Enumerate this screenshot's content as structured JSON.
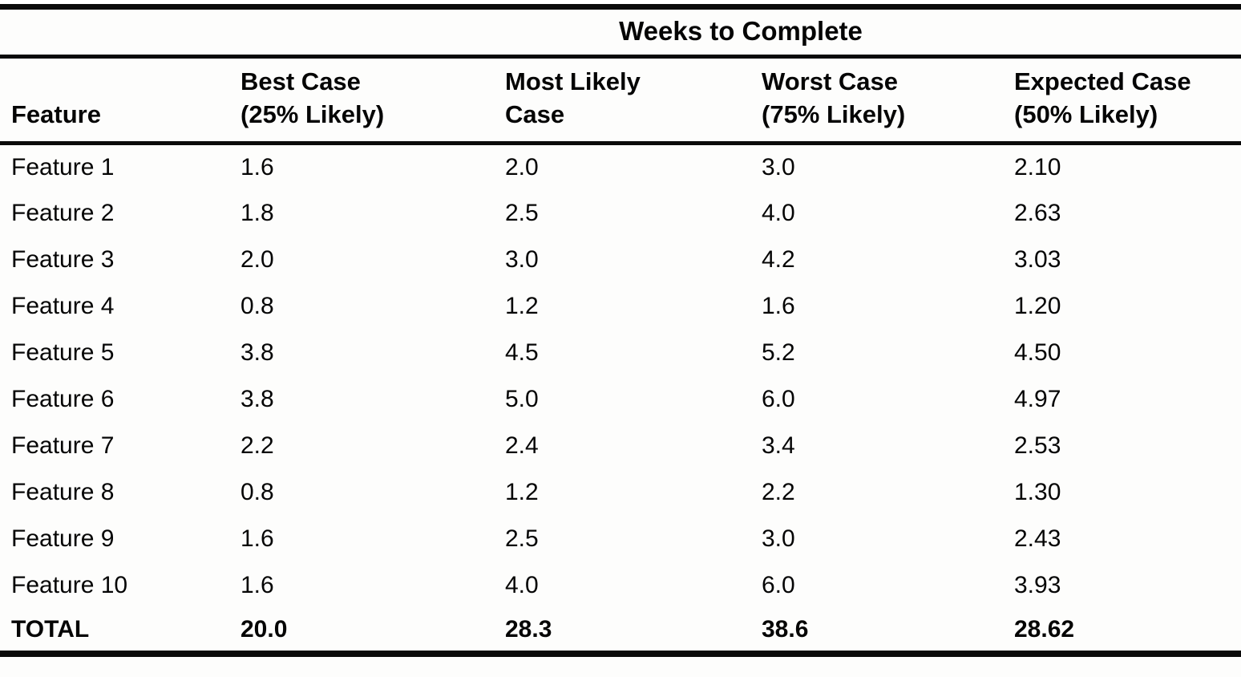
{
  "table": {
    "span_header": "Weeks to Complete",
    "columns": [
      "Feature",
      "Best Case\n(25% Likely)",
      "Most Likely\nCase",
      "Worst Case\n(75% Likely)",
      "Expected Case\n(50% Likely)"
    ],
    "rows": [
      [
        "Feature 1",
        "1.6",
        "2.0",
        "3.0",
        "2.10"
      ],
      [
        "Feature 2",
        "1.8",
        "2.5",
        "4.0",
        "2.63"
      ],
      [
        "Feature 3",
        "2.0",
        "3.0",
        "4.2",
        "3.03"
      ],
      [
        "Feature 4",
        "0.8",
        "1.2",
        "1.6",
        "1.20"
      ],
      [
        "Feature 5",
        "3.8",
        "4.5",
        "5.2",
        "4.50"
      ],
      [
        "Feature 6",
        "3.8",
        "5.0",
        "6.0",
        "4.97"
      ],
      [
        "Feature 7",
        "2.2",
        "2.4",
        "3.4",
        "2.53"
      ],
      [
        "Feature 8",
        "0.8",
        "1.2",
        "2.2",
        "1.30"
      ],
      [
        "Feature 9",
        "1.6",
        "2.5",
        "3.0",
        "2.43"
      ],
      [
        "Feature 10",
        "1.6",
        "4.0",
        "6.0",
        "3.93"
      ]
    ],
    "total_row": [
      "TOTAL",
      "20.0",
      "28.3",
      "38.6",
      "28.62"
    ]
  }
}
